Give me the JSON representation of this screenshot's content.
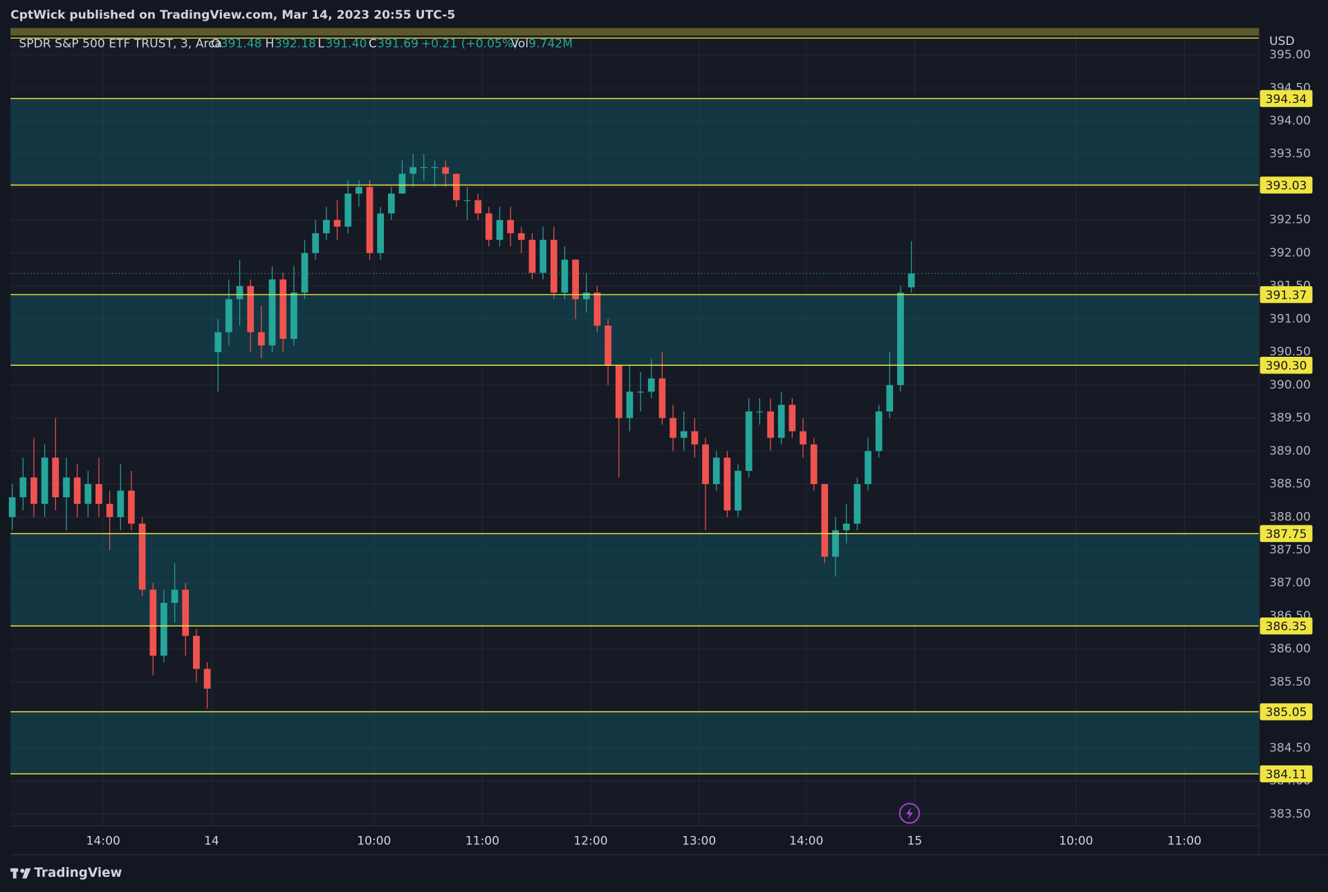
{
  "header": {
    "title": "CptWick published on TradingView.com, Mar 14, 2023 20:55 UTC-5"
  },
  "footer": {
    "brand": "TradingView"
  },
  "chart_data": {
    "type": "candlestick",
    "currency": "USD",
    "legend": {
      "symbol": "SPDR S&P 500 ETF TRUST, 3, Arca",
      "o_label": "O",
      "o": "391.48",
      "h_label": "H",
      "h": "392.18",
      "l_label": "L",
      "l": "391.40",
      "c_label": "C",
      "c": "391.69",
      "change": "+0.21 (+0.05%)",
      "vol_label": "Vol",
      "vol": "9.742M"
    },
    "up_color": "#26a69a",
    "down_color": "#ef5350",
    "open": [
      388.0,
      388.3,
      388.6,
      388.2,
      388.9,
      388.3,
      388.6,
      388.2,
      388.5,
      388.2,
      388.0,
      388.4,
      387.9,
      386.9,
      385.9,
      386.7,
      386.9,
      386.2,
      385.7,
      390.5,
      390.8,
      391.3,
      391.5,
      390.8,
      390.6,
      391.6,
      390.7,
      391.4,
      392.0,
      392.3,
      392.5,
      392.4,
      392.9,
      393.0,
      392.0,
      392.6,
      392.9,
      393.2,
      393.3,
      393.3,
      393.3,
      393.2,
      392.8,
      392.8,
      392.6,
      392.2,
      392.5,
      392.3,
      392.2,
      391.7,
      392.2,
      391.4,
      391.9,
      391.3,
      391.4,
      390.9,
      390.3,
      389.5,
      389.9,
      389.9,
      390.1,
      389.5,
      389.2,
      389.3,
      389.1,
      388.5,
      388.9,
      388.1,
      388.7,
      389.6,
      389.6,
      389.2,
      389.7,
      389.3,
      389.1,
      388.5,
      387.4,
      387.8,
      387.9,
      388.5,
      389.0,
      389.6,
      390.0,
      391.48
    ],
    "high": [
      388.5,
      388.9,
      389.2,
      389.1,
      389.5,
      388.9,
      388.8,
      388.7,
      388.9,
      388.4,
      388.8,
      388.7,
      388.0,
      387.0,
      386.9,
      387.3,
      387.0,
      386.3,
      385.8,
      391.0,
      391.6,
      391.9,
      391.6,
      391.2,
      391.8,
      391.7,
      391.8,
      392.2,
      392.5,
      392.7,
      392.8,
      393.1,
      393.1,
      393.1,
      392.7,
      393.0,
      393.4,
      393.5,
      393.5,
      393.4,
      393.4,
      393.2,
      393.0,
      392.9,
      392.7,
      392.7,
      392.7,
      392.4,
      392.3,
      392.4,
      392.4,
      392.1,
      391.9,
      391.7,
      391.5,
      391.0,
      390.3,
      390.3,
      390.2,
      390.4,
      390.5,
      389.7,
      389.6,
      389.5,
      389.2,
      389.0,
      389.0,
      388.8,
      389.8,
      389.8,
      389.8,
      389.9,
      389.8,
      389.5,
      389.2,
      388.5,
      388.0,
      388.2,
      388.6,
      389.2,
      389.7,
      390.5,
      391.5,
      392.18
    ],
    "low": [
      387.8,
      388.1,
      388.0,
      388.0,
      388.1,
      387.8,
      388.0,
      388.0,
      388.0,
      387.5,
      387.8,
      387.8,
      386.8,
      385.6,
      385.8,
      386.4,
      385.9,
      385.5,
      385.1,
      389.9,
      390.6,
      390.9,
      390.5,
      390.4,
      390.5,
      390.5,
      390.6,
      391.3,
      391.9,
      392.2,
      392.2,
      392.3,
      392.7,
      391.9,
      391.9,
      392.5,
      392.9,
      393.0,
      393.1,
      393.0,
      393.0,
      392.7,
      392.5,
      392.5,
      392.1,
      392.1,
      392.1,
      392.0,
      391.6,
      391.6,
      391.3,
      391.3,
      391.0,
      391.1,
      390.8,
      390.0,
      388.6,
      389.3,
      389.6,
      389.8,
      389.4,
      389.0,
      389.0,
      388.9,
      387.8,
      388.4,
      388.0,
      388.0,
      388.6,
      389.4,
      389.0,
      389.1,
      389.2,
      388.9,
      388.4,
      387.3,
      387.1,
      387.6,
      387.8,
      388.4,
      388.9,
      389.5,
      389.9,
      391.4
    ],
    "close": [
      388.3,
      388.6,
      388.2,
      388.9,
      388.3,
      388.6,
      388.2,
      388.5,
      388.2,
      388.0,
      388.4,
      387.9,
      386.9,
      385.9,
      386.7,
      386.9,
      386.2,
      385.7,
      385.4,
      390.8,
      391.3,
      391.5,
      390.8,
      390.6,
      391.6,
      390.7,
      391.4,
      392.0,
      392.3,
      392.5,
      392.4,
      392.9,
      393.0,
      392.0,
      392.6,
      392.9,
      393.2,
      393.3,
      393.3,
      393.3,
      393.2,
      392.8,
      392.8,
      392.6,
      392.2,
      392.5,
      392.3,
      392.2,
      391.7,
      392.2,
      391.4,
      391.9,
      391.3,
      391.4,
      390.9,
      390.3,
      389.5,
      389.9,
      389.9,
      390.1,
      389.5,
      389.2,
      389.3,
      389.1,
      388.5,
      388.9,
      388.1,
      388.7,
      389.6,
      389.6,
      389.2,
      389.7,
      389.3,
      389.1,
      388.5,
      387.4,
      387.8,
      387.9,
      388.5,
      389.0,
      389.6,
      390.0,
      391.4,
      391.69
    ],
    "xlim": [
      -0.16,
      115.1
    ],
    "xticks": [
      {
        "value": 8.4,
        "label": "14:00"
      },
      {
        "value": 18.4,
        "label": "14"
      },
      {
        "value": 33.4,
        "label": "10:00"
      },
      {
        "value": 43.4,
        "label": "11:00"
      },
      {
        "value": 53.4,
        "label": "12:00"
      },
      {
        "value": 63.4,
        "label": "13:00"
      },
      {
        "value": 73.3,
        "label": "14:00"
      },
      {
        "value": 83.3,
        "label": "15"
      },
      {
        "value": 98.2,
        "label": "10:00"
      },
      {
        "value": 108.2,
        "label": "11:00"
      }
    ],
    "ylim": [
      383.32,
      395.41
    ],
    "yticks": [
      {
        "value": 383.5,
        "label": "383.50"
      },
      {
        "value": 384,
        "label": "384.00"
      },
      {
        "value": 384.5,
        "label": "384.50"
      },
      {
        "value": 385,
        "label": "385.00"
      },
      {
        "value": 385.5,
        "label": "385.50"
      },
      {
        "value": 386,
        "label": "386.00"
      },
      {
        "value": 386.5,
        "label": "386.50"
      },
      {
        "value": 387,
        "label": "387.00"
      },
      {
        "value": 387.5,
        "label": "387.50"
      },
      {
        "value": 388,
        "label": "388.00"
      },
      {
        "value": 388.5,
        "label": "388.50"
      },
      {
        "value": 389,
        "label": "389.00"
      },
      {
        "value": 389.5,
        "label": "389.50"
      },
      {
        "value": 390,
        "label": "390.00"
      },
      {
        "value": 390.5,
        "label": "390.50"
      },
      {
        "value": 391,
        "label": "391.00"
      },
      {
        "value": 391.5,
        "label": "391.50"
      },
      {
        "value": 392,
        "label": "392.00"
      },
      {
        "value": 392.5,
        "label": "392.50"
      },
      {
        "value": 393,
        "label": "393.00"
      },
      {
        "value": 393.5,
        "label": "393.50"
      },
      {
        "value": 394,
        "label": "394.00"
      },
      {
        "value": 394.5,
        "label": "394.50"
      },
      {
        "value": 395,
        "label": "395.00"
      }
    ],
    "grid": true,
    "levels": [
      394.34,
      393.03,
      391.37,
      {
        "value": 390.3,
        "label": "390.30"
      },
      387.75,
      386.35,
      385.05,
      384.11
    ],
    "level_color": "#f0e442"
  }
}
